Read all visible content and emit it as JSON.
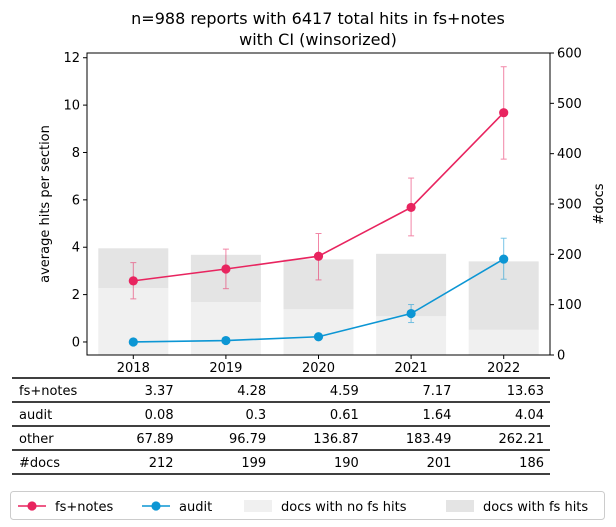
{
  "chart_data": {
    "type": "line",
    "title_lines": [
      "n=988 reports with 6417 total hits in fs+notes",
      "with CI (winsorized)"
    ],
    "ylabel": "average hits per section",
    "y2label": "#docs",
    "categories": [
      "2018",
      "2019",
      "2020",
      "2021",
      "2022"
    ],
    "ylim": [
      -0.55,
      12.2
    ],
    "yticks": [
      "0",
      "2",
      "4",
      "6",
      "8",
      "10",
      "12"
    ],
    "y2lim": [
      0,
      600
    ],
    "y2ticks": [
      "0",
      "100",
      "200",
      "300",
      "400",
      "500",
      "600"
    ],
    "grid": false,
    "series": [
      {
        "name": "fs+notes",
        "color": "#e8245f",
        "values": [
          2.58,
          3.08,
          3.62,
          5.68,
          9.68
        ],
        "ci_low": [
          1.82,
          2.25,
          2.62,
          4.48,
          7.72
        ],
        "ci_high": [
          3.35,
          3.92,
          4.58,
          6.92,
          11.62
        ]
      },
      {
        "name": "audit",
        "color": "#0c96d4",
        "values": [
          0.0,
          0.06,
          0.22,
          1.2,
          3.5
        ],
        "ci_low": [
          0.0,
          0.03,
          0.12,
          0.82,
          2.65
        ],
        "ci_high": [
          0.02,
          0.1,
          0.32,
          1.58,
          4.38
        ]
      }
    ],
    "bars": [
      {
        "name": "docs with no fs hits",
        "color": "#f0f0f0",
        "values": [
          133,
          105,
          91,
          77,
          50
        ]
      },
      {
        "name": "docs with fs hits",
        "color": "#e4e4e4",
        "values": [
          79,
          94,
          99,
          124,
          136
        ]
      }
    ],
    "legend_position": "bottom",
    "table": {
      "rows": [
        {
          "label": "fs+notes",
          "values": [
            "3.37",
            "4.28",
            "4.59",
            "7.17",
            "13.63"
          ]
        },
        {
          "label": "audit",
          "values": [
            "0.08",
            "0.3",
            "0.61",
            "1.64",
            "4.04"
          ]
        },
        {
          "label": "other",
          "values": [
            "67.89",
            "96.79",
            "136.87",
            "183.49",
            "262.21"
          ]
        },
        {
          "label": "#docs",
          "values": [
            "212",
            "199",
            "190",
            "201",
            "186"
          ]
        }
      ]
    }
  }
}
